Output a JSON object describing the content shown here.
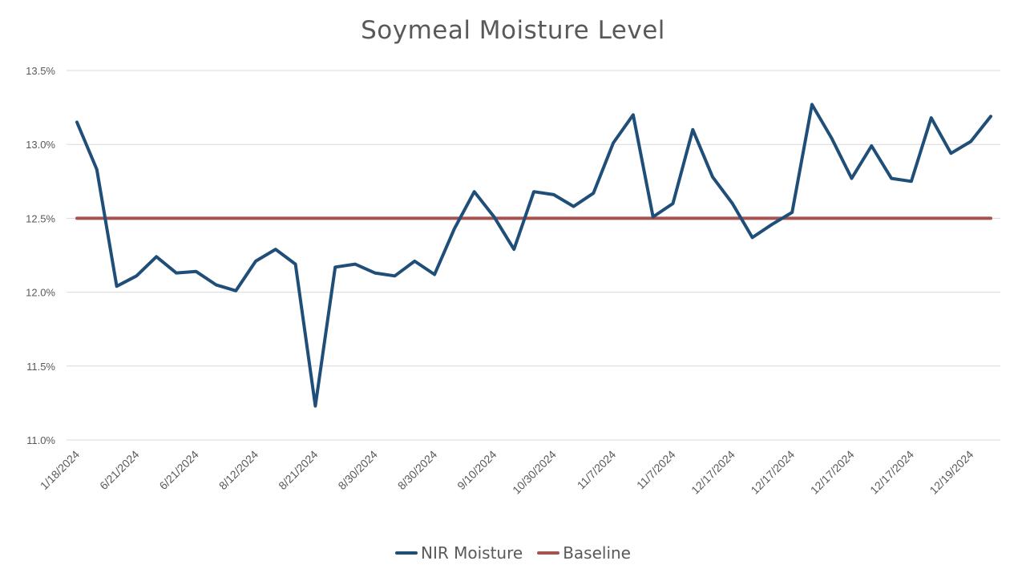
{
  "chart_data": {
    "type": "line",
    "title": "Soymeal Moisture Level",
    "xlabel": "",
    "ylabel": "",
    "ylim": [
      0.11,
      0.135
    ],
    "yticks": [
      "11.0%",
      "11.5%",
      "12.0%",
      "12.5%",
      "13.0%",
      "13.5%"
    ],
    "grid": true,
    "legend_position": "bottom",
    "x_tick_labels": [
      "1/18/2024",
      "6/21/2024",
      "6/21/2024",
      "8/12/2024",
      "8/21/2024",
      "8/30/2024",
      "8/30/2024",
      "9/10/2024",
      "10/30/2024",
      "11/7/2024",
      "11/7/2024",
      "12/17/2024",
      "12/17/2024",
      "12/17/2024",
      "12/17/2024",
      "12/19/2024"
    ],
    "series": [
      {
        "name": "NIR Moisture",
        "color": "#1F4E79",
        "values": [
          0.1315,
          0.1283,
          0.1204,
          0.1211,
          0.1224,
          0.1213,
          0.1214,
          0.1205,
          0.1201,
          0.1221,
          0.1229,
          0.1219,
          0.1123,
          0.1217,
          0.1219,
          0.1213,
          0.1211,
          0.1221,
          0.1212,
          0.1243,
          0.1268,
          0.1251,
          0.1229,
          0.1268,
          0.1266,
          0.1258,
          0.1267,
          0.1301,
          0.132,
          0.1251,
          0.126,
          0.131,
          0.1278,
          0.126,
          0.1237,
          0.1246,
          0.1254,
          0.1327,
          0.1304,
          0.1277,
          0.1299,
          0.1277,
          0.1275,
          0.1318,
          0.1294,
          0.1302,
          0.1319
        ]
      },
      {
        "name": "Baseline",
        "color": "#A5534F",
        "values": [
          0.125,
          0.125,
          0.125,
          0.125,
          0.125,
          0.125,
          0.125,
          0.125,
          0.125,
          0.125,
          0.125,
          0.125,
          0.125,
          0.125,
          0.125,
          0.125,
          0.125,
          0.125,
          0.125,
          0.125,
          0.125,
          0.125,
          0.125,
          0.125,
          0.125,
          0.125,
          0.125,
          0.125,
          0.125,
          0.125,
          0.125,
          0.125,
          0.125,
          0.125,
          0.125,
          0.125,
          0.125,
          0.125,
          0.125,
          0.125,
          0.125,
          0.125,
          0.125,
          0.125,
          0.125,
          0.125,
          0.125
        ]
      }
    ]
  }
}
